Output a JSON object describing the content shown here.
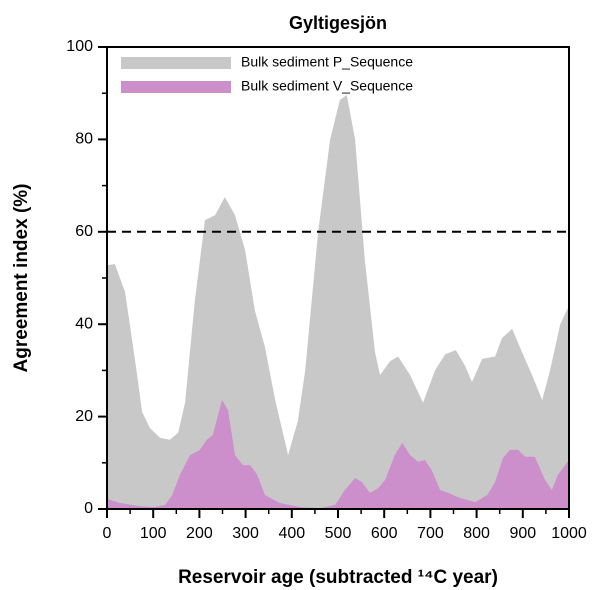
{
  "chart_data": {
    "type": "area",
    "title": "Gyltigesjön",
    "x_label": "Reservoir age (subtracted ¹⁴C year)",
    "y_label": "Agreement index (%)",
    "xlim": [
      0,
      1000
    ],
    "ylim": [
      0,
      100
    ],
    "xticks": [
      0,
      100,
      200,
      300,
      400,
      500,
      600,
      700,
      800,
      900,
      1000
    ],
    "xticks_minor": [
      50,
      150,
      250,
      350,
      450,
      550,
      650,
      750,
      850,
      950
    ],
    "yticks": [
      0,
      20,
      40,
      60,
      80,
      100
    ],
    "yticks_minor": [
      10,
      30,
      50,
      70,
      90
    ],
    "hline": 60,
    "legend": "upper left",
    "series": [
      {
        "name": "Bulk sediment P_Sequence",
        "color": "#c8c8c8",
        "x": [
          0,
          17,
          39,
          61,
          76,
          93,
          115,
          136,
          154,
          169,
          190,
          212,
          234,
          255,
          277,
          299,
          320,
          342,
          364,
          392,
          413,
          429,
          457,
          483,
          504,
          519,
          537,
          558,
          580,
          591,
          613,
          630,
          656,
          684,
          710,
          732,
          755,
          775,
          790,
          812,
          840,
          855,
          877,
          898,
          920,
          942,
          959,
          981,
          1000
        ],
        "values": [
          52.8,
          53,
          47,
          32,
          21,
          17.5,
          15.4,
          15,
          16.5,
          23,
          45,
          62.5,
          63.6,
          67.5,
          63.6,
          56,
          43,
          35,
          23.6,
          11.7,
          19,
          30,
          60,
          80,
          88.5,
          89.6,
          80,
          54,
          34,
          29,
          32,
          33,
          29,
          23,
          30,
          33.5,
          34.4,
          31,
          27.5,
          32.5,
          33,
          37,
          39,
          34,
          29,
          23.6,
          30,
          40,
          44
        ]
      },
      {
        "name": "Bulk sediment V_Sequence",
        "color": "#cc8fcc",
        "x": [
          0,
          28,
          71,
          104,
          126,
          141,
          158,
          180,
          201,
          216,
          229,
          249,
          262,
          277,
          294,
          310,
          325,
          342,
          374,
          418,
          461,
          494,
          515,
          537,
          552,
          569,
          587,
          602,
          623,
          639,
          656,
          673,
          688,
          703,
          721,
          738,
          764,
          797,
          823,
          840,
          857,
          872,
          890,
          905,
          926,
          948,
          963,
          976,
          1000
        ],
        "values": [
          2.2,
          1.3,
          0.6,
          0.4,
          0.9,
          3,
          7.4,
          11.7,
          12.8,
          15,
          16,
          23.6,
          21.4,
          11.7,
          9.5,
          9.5,
          7.4,
          3,
          1.3,
          0.4,
          0.2,
          0.9,
          4.1,
          6.7,
          5.8,
          3.5,
          4.5,
          6.3,
          11.7,
          14.3,
          11.7,
          10.2,
          10.6,
          8.4,
          4.1,
          3.5,
          2.4,
          1.5,
          3,
          5.8,
          11,
          12.8,
          12.8,
          11.3,
          11.3,
          6.3,
          4.1,
          7.4,
          10.6
        ]
      }
    ]
  }
}
